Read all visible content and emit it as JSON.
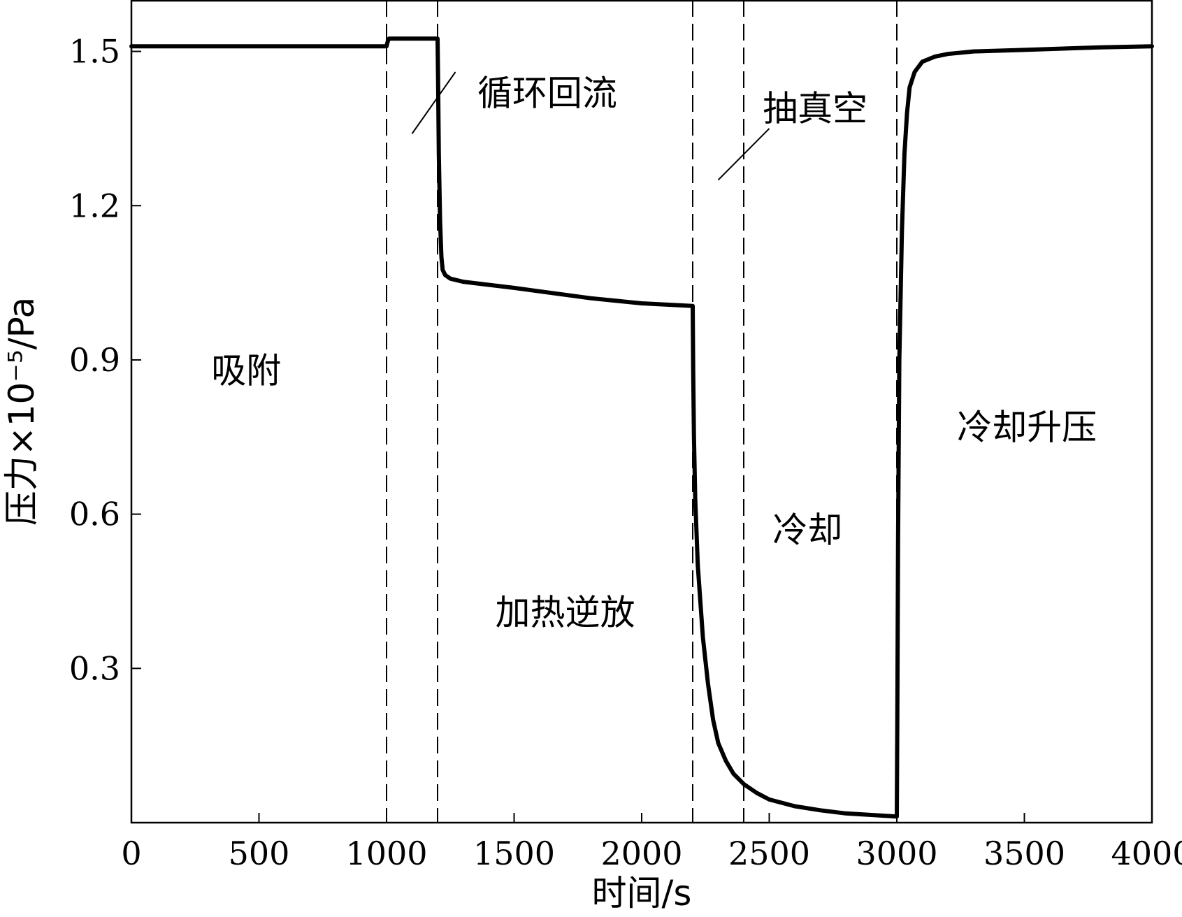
{
  "chart_data": {
    "type": "line",
    "title": "",
    "xlabel": "时间/s",
    "ylabel": "压力×10⁻⁵/Pa",
    "xlim": [
      0,
      4000
    ],
    "ylim": [
      0,
      1.6
    ],
    "xticks": [
      0,
      500,
      1000,
      1500,
      2000,
      2500,
      3000,
      3500,
      4000
    ],
    "xtick_labels": [
      "0",
      "500",
      "1000",
      "1500",
      "2000",
      "2500",
      "3000",
      "3500",
      "4000"
    ],
    "yticks": [
      0.3,
      0.6,
      0.9,
      1.2,
      1.5
    ],
    "ytick_labels": [
      "0.3",
      "0.6",
      "0.9",
      "1.2",
      "1.5"
    ],
    "grid": false,
    "boundaries": [
      1000,
      1200,
      2200,
      2400,
      3000
    ],
    "annotations": [
      {
        "text": "吸附",
        "x": 450,
        "y": 0.88
      },
      {
        "text": "循环回流",
        "x": 1630,
        "y": 1.42
      },
      {
        "text": "加热逆放",
        "x": 1700,
        "y": 0.41
      },
      {
        "text": "抽真空",
        "x": 2680,
        "y": 1.39
      },
      {
        "text": "冷却",
        "x": 2650,
        "y": 0.57
      },
      {
        "text": "冷却升压",
        "x": 3510,
        "y": 0.77
      }
    ],
    "leaders": [
      {
        "from": [
          1100,
          1.34
        ],
        "to": [
          1270,
          1.46
        ]
      },
      {
        "from": [
          2300,
          1.25
        ],
        "to": [
          2500,
          1.35
        ]
      }
    ],
    "series": [
      {
        "x": [
          0,
          500,
          1000,
          1005,
          1010,
          1200,
          1202,
          1205,
          1210,
          1215,
          1220,
          1230,
          1250,
          1300,
          1500,
          1800,
          2000,
          2200,
          2202,
          2205,
          2210,
          2220,
          2240,
          2260,
          2280,
          2300,
          2330,
          2360,
          2400,
          2450,
          2500,
          2600,
          2700,
          2800,
          2900,
          3000,
          3002,
          3005,
          3010,
          3020,
          3030,
          3040,
          3050,
          3070,
          3100,
          3150,
          3200,
          3300,
          3500,
          3800,
          4000
        ],
        "y": [
          1.51,
          1.51,
          1.51,
          1.52,
          1.525,
          1.525,
          1.45,
          1.3,
          1.17,
          1.1,
          1.075,
          1.065,
          1.058,
          1.052,
          1.04,
          1.02,
          1.01,
          1.005,
          0.88,
          0.75,
          0.63,
          0.5,
          0.36,
          0.27,
          0.2,
          0.155,
          0.12,
          0.095,
          0.075,
          0.058,
          0.045,
          0.032,
          0.024,
          0.018,
          0.015,
          0.012,
          0.2,
          0.55,
          0.9,
          1.15,
          1.3,
          1.38,
          1.43,
          1.46,
          1.48,
          1.49,
          1.495,
          1.5,
          1.503,
          1.508,
          1.51
        ]
      }
    ]
  }
}
